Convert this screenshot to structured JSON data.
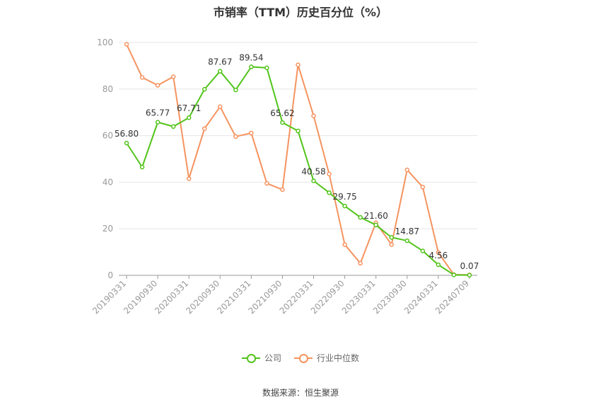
{
  "chart_data": {
    "type": "line",
    "title": "市销率（TTM）历史百分位（%）",
    "x": [
      "20190331",
      "20190630",
      "20190930",
      "20191231",
      "20200331",
      "20200630",
      "20200930",
      "20201231",
      "20210331",
      "20210630",
      "20210930",
      "20211231",
      "20220331",
      "20220630",
      "20220930",
      "20221231",
      "20230331",
      "20230630",
      "20230930",
      "20231231",
      "20240331",
      "20240630",
      "20240709"
    ],
    "x_tick_labels": [
      "20190331",
      "20190930",
      "20200331",
      "20200930",
      "20210331",
      "20210930",
      "20220331",
      "20220930",
      "20230331",
      "20230930",
      "20240331",
      "20240709"
    ],
    "ylim": [
      0,
      100
    ],
    "y_ticks": [
      0,
      20,
      40,
      60,
      80,
      100
    ],
    "grid": true,
    "legend_position": "bottom",
    "series": [
      {
        "name": "公司",
        "color": "#52c41a",
        "values": [
          56.8,
          46.5,
          65.77,
          63.9,
          67.71,
          79.9,
          87.67,
          79.6,
          89.54,
          89.1,
          65.62,
          62.0,
          40.58,
          35.5,
          29.75,
          24.9,
          21.6,
          16.3,
          14.87,
          10.5,
          4.56,
          0.2,
          0.07
        ],
        "labels": [
          "56.80",
          "",
          "65.77",
          "",
          "67.71",
          "",
          "87.67",
          "",
          "89.54",
          "",
          "65.62",
          "",
          "40.58",
          "",
          "29.75",
          "",
          "21.60",
          "",
          "14.87",
          "",
          "4.56",
          "",
          "0.07"
        ]
      },
      {
        "name": "行业中位数",
        "color": "#f5935f",
        "values": [
          99.2,
          85.0,
          81.6,
          85.3,
          41.5,
          63.0,
          72.4,
          59.6,
          61.1,
          39.5,
          36.8,
          90.4,
          68.5,
          43.5,
          13.2,
          5.2,
          22.6,
          13.2,
          45.3,
          37.9,
          9.8,
          0.3,
          0.2
        ]
      }
    ]
  },
  "source_text": "数据来源：恒生聚源"
}
